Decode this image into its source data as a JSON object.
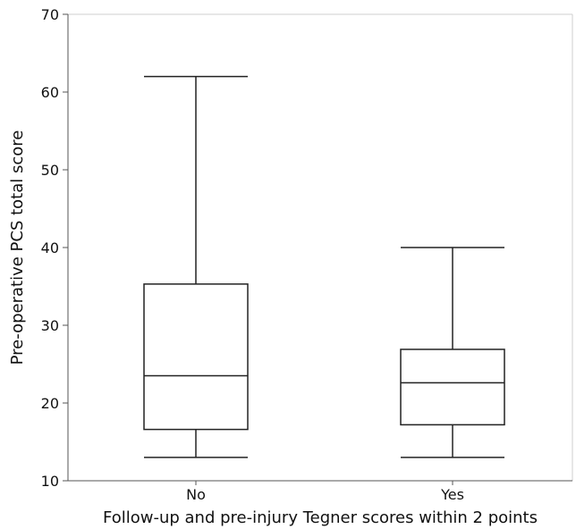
{
  "chart_data": {
    "type": "box",
    "xlabel": "Follow-up and pre-injury Tegner scores within 2 points",
    "ylabel": "Pre-operative PCS total score",
    "ylim": [
      10,
      70
    ],
    "yticks": [
      10,
      20,
      30,
      40,
      50,
      60,
      70
    ],
    "grid": false,
    "categories": [
      "No",
      "Yes"
    ],
    "boxes": [
      {
        "category": "No",
        "min": 13,
        "q1": 16.6,
        "median": 23.5,
        "q3": 35.3,
        "max": 62
      },
      {
        "category": "Yes",
        "min": 13,
        "q1": 17.2,
        "median": 22.6,
        "q3": 26.9,
        "max": 40
      }
    ]
  },
  "colors": {
    "stroke": "#222222",
    "frame": "#cfcfcf",
    "background": "#ffffff"
  }
}
